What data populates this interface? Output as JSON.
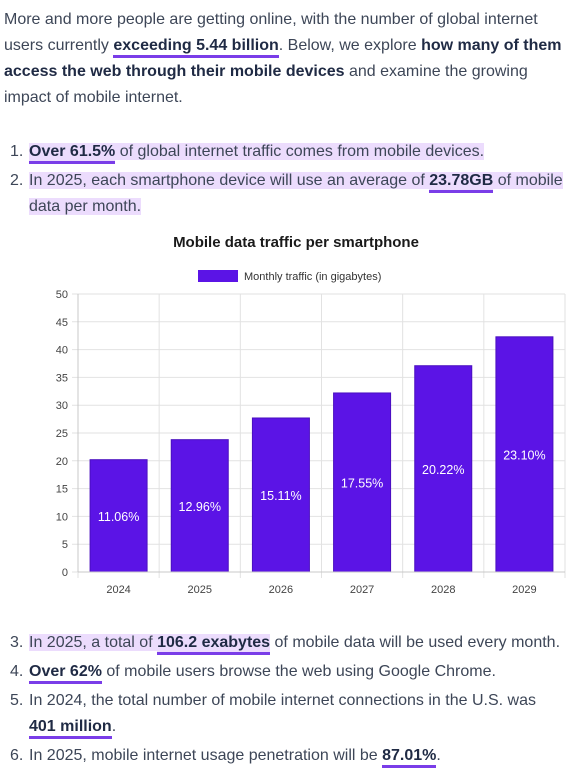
{
  "intro": {
    "p1": "More and more people are getting online, with the number of global internet users currently ",
    "h1": "exceeding 5.44 billion",
    "p2": ". Below, we explore ",
    "h2": "how many of them access the web through their mobile devices",
    "p3": " and examine the growing impact of mobile internet."
  },
  "facts_top": [
    {
      "n": "1.",
      "bold": "Over 61.5%",
      "rest": " of global internet traffic comes from mobile devices."
    },
    {
      "n": "2.",
      "pre": "In 2025, each smartphone device will use an average of ",
      "bold": "23.78GB",
      "rest": " of mobile data per month."
    }
  ],
  "facts_bottom": [
    {
      "n": "3.",
      "pre": "In 2025, a total of ",
      "bold": "106.2 exabytes",
      "rest": " of mobile data will be used every month."
    },
    {
      "n": "4.",
      "bold": "Over 62%",
      "rest": " of mobile users browse the web using Google Chrome."
    },
    {
      "n": "5.",
      "pre": "In 2024, the total number of mobile internet connections in the U.S. was ",
      "bold": "401 million",
      "rest": "."
    },
    {
      "n": "6.",
      "pre": "In 2025, mobile internet usage penetration will be ",
      "bold": "87.01%",
      "rest": "."
    }
  ],
  "colors": {
    "bar": "#5b14e6",
    "highlight": "#ecdcfd",
    "underline": "#7a3de8"
  },
  "chart_data": {
    "type": "bar",
    "title": "Mobile data traffic per smartphone",
    "categories": [
      "2024",
      "2025",
      "2026",
      "2027",
      "2028",
      "2029"
    ],
    "series": [
      {
        "name": "Monthly traffic (in gigabytes)",
        "values": [
          20.2,
          23.8,
          27.7,
          32.2,
          37.1,
          42.3
        ]
      }
    ],
    "data_labels": [
      "11.06%",
      "12.96%",
      "15.11%",
      "17.55%",
      "20.22%",
      "23.10%"
    ],
    "ylim": [
      0,
      50
    ],
    "yticks": [
      0,
      5,
      10,
      15,
      20,
      25,
      30,
      35,
      40,
      45,
      50
    ],
    "grid": true,
    "legend": "top"
  }
}
